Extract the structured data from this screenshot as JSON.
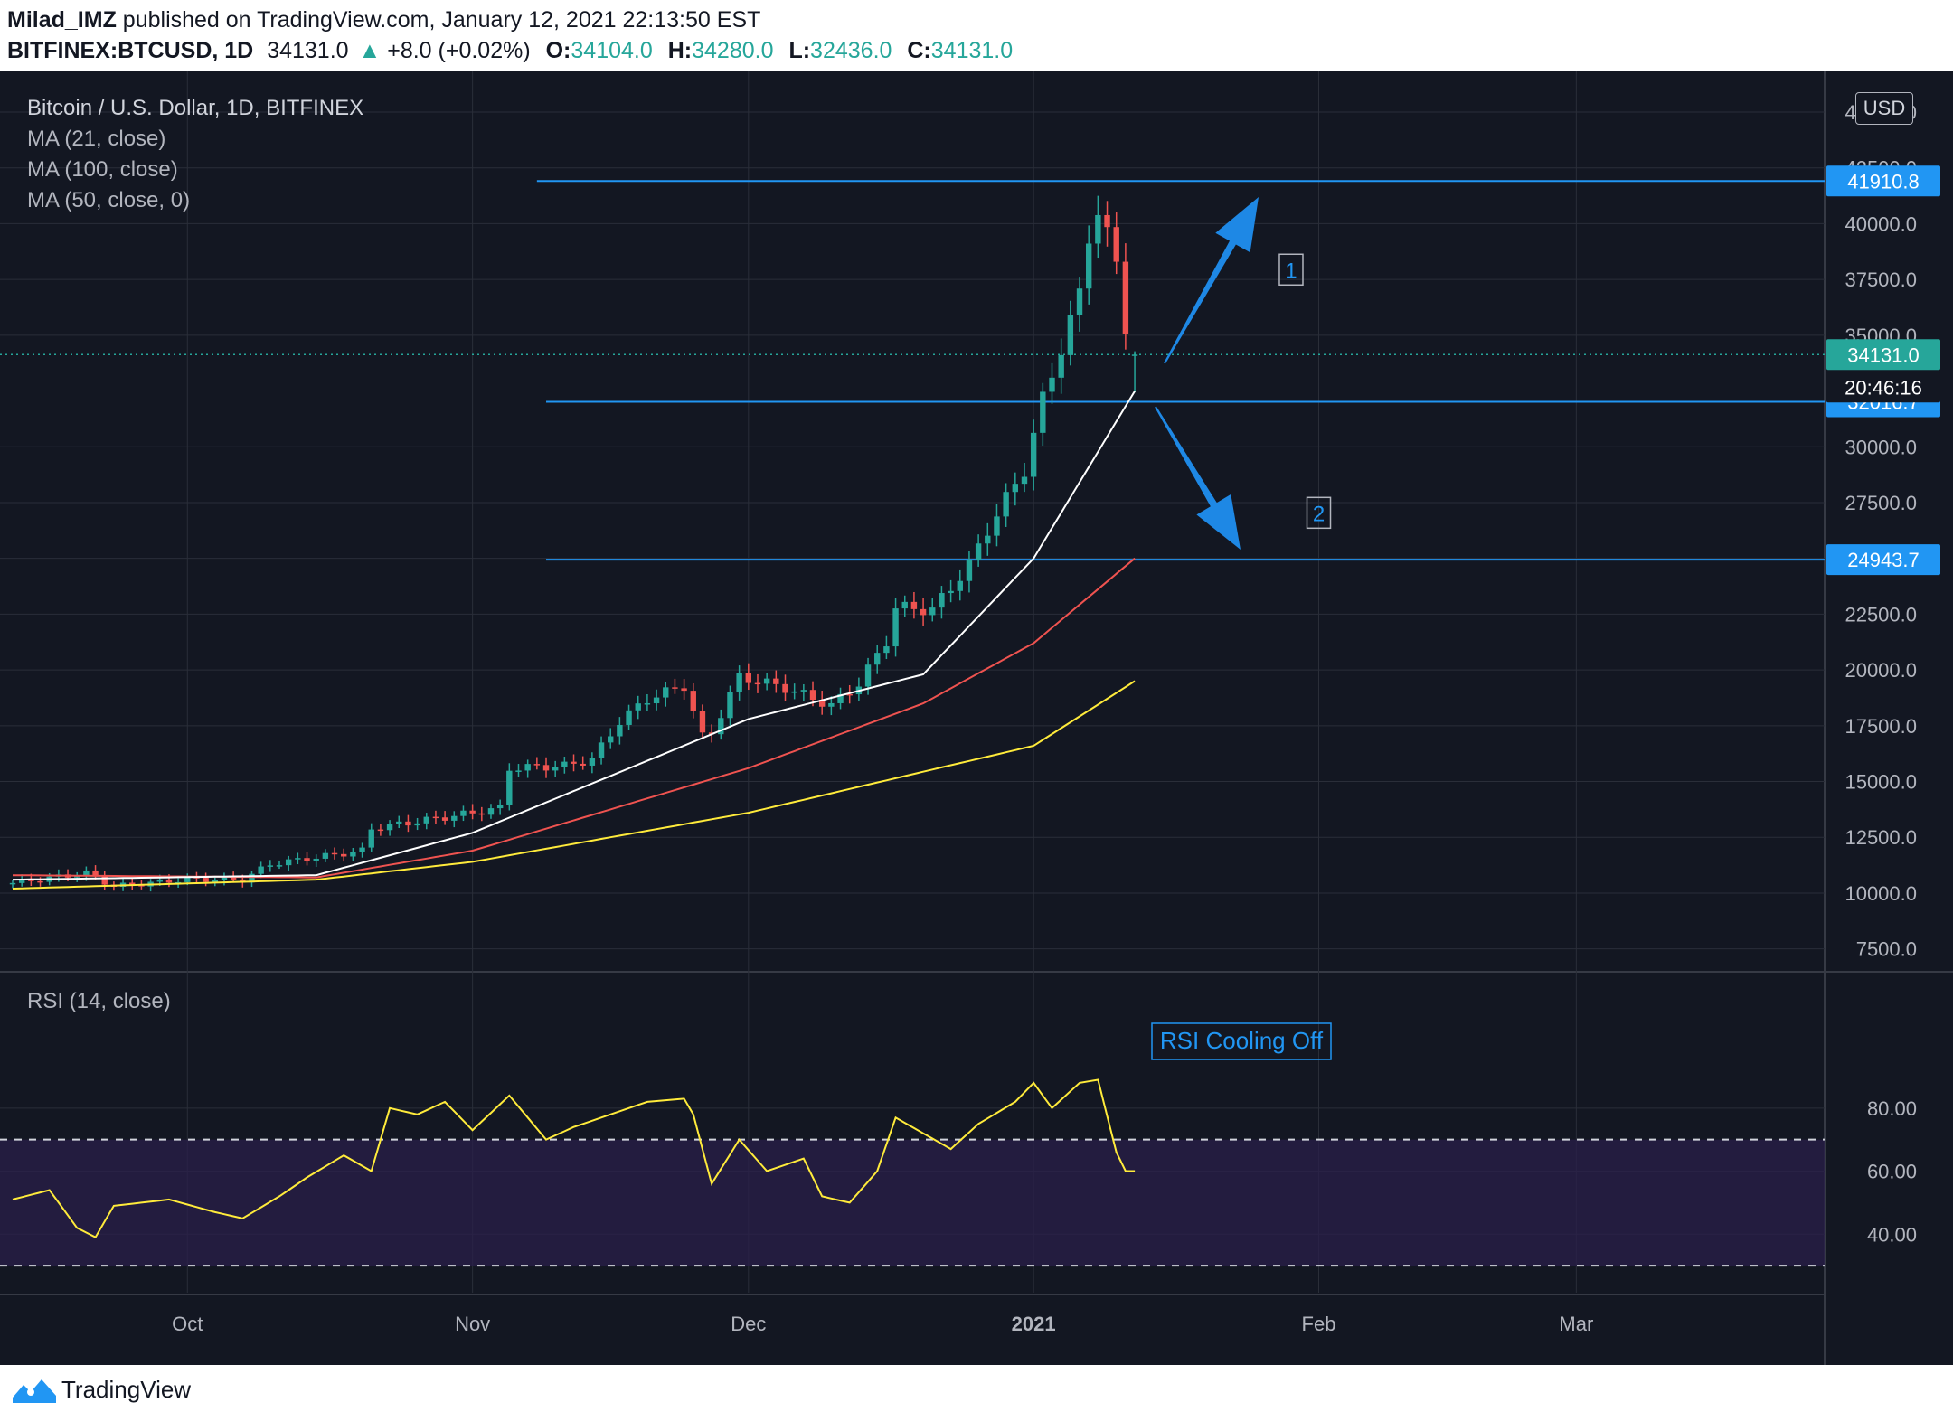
{
  "header": {
    "author": "Milad_IMZ",
    "published": "published on TradingView.com, January 12, 2021 22:13:50 EST",
    "symbol": "BITFINEX:BTCUSD, 1D",
    "last": "34131.0",
    "change": "+8.0 (+0.02%)",
    "o_label": "O:",
    "o": "34104.0",
    "h_label": "H:",
    "h": "34280.0",
    "l_label": "L:",
    "l": "32436.0",
    "c_label": "C:",
    "c": "34131.0"
  },
  "legend": {
    "title": "Bitcoin / U.S. Dollar, 1D, BITFINEX",
    "ma21": "MA (21, close)",
    "ma100": "MA (100, close)",
    "ma50": "MA (50, close, 0)",
    "rsi": "RSI (14, close)"
  },
  "currency": "USD",
  "footer": {
    "brand": "TradingView"
  },
  "colors": {
    "background": "#131722",
    "grid": "#2a2e39",
    "text": "#b2b5be",
    "up": "#26a69a",
    "down": "#ef5350",
    "ma21": "#ffffff",
    "ma100": "#ffeb3b",
    "ma50": "#ef5350",
    "level": "#2196f3",
    "rsi": "#ffeb3b",
    "rsi_band": "#2a1f4a",
    "annotation": "#2196f3"
  },
  "chart_data": [
    {
      "type": "candlestick",
      "title": "Bitcoin / U.S. Dollar, 1D, BITFINEX",
      "x_ticks": [
        "Oct",
        "Nov",
        "Dec",
        "2021",
        "Feb",
        "Mar"
      ],
      "y_ticks": [
        "7500.0",
        "10000.0",
        "12500.0",
        "15000.0",
        "17500.0",
        "20000.0",
        "22500.0",
        "25000.0",
        "27500.0",
        "30000.0",
        "32500.0",
        "35000.0",
        "37500.0",
        "40000.0",
        "42500.0",
        "45000.0"
      ],
      "ylim": [
        7000,
        45000
      ],
      "date_range": [
        "2020-09-12",
        "2021-03-28"
      ],
      "close_anchors": [
        [
          "2020-09-12",
          10450
        ],
        [
          "2020-09-20",
          10900
        ],
        [
          "2020-09-23",
          10300
        ],
        [
          "2020-10-01",
          10620
        ],
        [
          "2020-10-07",
          10600
        ],
        [
          "2020-10-10",
          11300
        ],
        [
          "2020-10-20",
          11900
        ],
        [
          "2020-10-21",
          12900
        ],
        [
          "2020-10-29",
          13400
        ],
        [
          "2020-11-04",
          13800
        ],
        [
          "2020-11-05",
          15600
        ],
        [
          "2020-11-11",
          15700
        ],
        [
          "2020-11-14",
          16000
        ],
        [
          "2020-11-17",
          17700
        ],
        [
          "2020-11-20",
          18700
        ],
        [
          "2020-11-24",
          19300
        ],
        [
          "2020-11-26",
          17000
        ],
        [
          "2020-11-27",
          17200
        ],
        [
          "2020-11-30",
          19700
        ],
        [
          "2020-12-05",
          19200
        ],
        [
          "2020-12-10",
          18400
        ],
        [
          "2020-12-13",
          19400
        ],
        [
          "2020-12-16",
          21300
        ],
        [
          "2020-12-17",
          22800
        ],
        [
          "2020-12-21",
          22700
        ],
        [
          "2020-12-25",
          24700
        ],
        [
          "2020-12-27",
          26300
        ],
        [
          "2020-12-31",
          29000
        ],
        [
          "2021-01-02",
          32100
        ],
        [
          "2021-01-06",
          36800
        ],
        [
          "2021-01-07",
          39500
        ],
        [
          "2021-01-08",
          40600
        ],
        [
          "2021-01-10",
          38200
        ],
        [
          "2021-01-11",
          35500
        ],
        [
          "2021-01-12",
          34131
        ]
      ],
      "last_candle": {
        "o": 34104.0,
        "h": 34280.0,
        "l": 32436.0,
        "c": 34131.0
      },
      "ma21_anchors": [
        [
          "2020-09-12",
          10600
        ],
        [
          "2020-10-15",
          10800
        ],
        [
          "2020-11-01",
          12700
        ],
        [
          "2020-12-01",
          17800
        ],
        [
          "2020-12-20",
          19800
        ],
        [
          "2021-01-01",
          25000
        ],
        [
          "2021-01-12",
          32500
        ]
      ],
      "ma50_anchors": [
        [
          "2020-09-12",
          10800
        ],
        [
          "2020-10-15",
          10700
        ],
        [
          "2020-11-01",
          11900
        ],
        [
          "2020-12-01",
          15600
        ],
        [
          "2020-12-20",
          18500
        ],
        [
          "2021-01-01",
          21200
        ],
        [
          "2021-01-12",
          25000
        ]
      ],
      "ma100_anchors": [
        [
          "2020-09-12",
          10200
        ],
        [
          "2020-10-15",
          10600
        ],
        [
          "2020-11-01",
          11400
        ],
        [
          "2020-12-01",
          13600
        ],
        [
          "2021-01-01",
          16600
        ],
        [
          "2021-01-12",
          19500
        ]
      ],
      "levels": [
        {
          "value": 41910.8,
          "label": "41910.8",
          "from": "2020-11-08"
        },
        {
          "value": 32016.7,
          "label": "32016.7",
          "from": "2020-11-09"
        },
        {
          "value": 24943.7,
          "label": "24943.7",
          "from": "2020-11-09"
        }
      ],
      "price_tags": [
        {
          "value": 34131.0,
          "label": "34131.0",
          "color": "#26a69a"
        },
        {
          "label": "20:46:16",
          "color": "#131722"
        }
      ],
      "annotations": [
        {
          "text": "1",
          "date": "2021-01-29",
          "price": 37900
        },
        {
          "text": "2",
          "date": "2021-02-01",
          "price": 27000
        }
      ]
    },
    {
      "type": "line",
      "title": "RSI (14, close)",
      "y_ticks": [
        "40.00",
        "60.00",
        "80.00"
      ],
      "ylim": [
        22,
        92
      ],
      "bands": [
        30,
        70
      ],
      "annotation": "RSI Cooling Off",
      "anchors": [
        [
          "2020-09-12",
          51
        ],
        [
          "2020-09-16",
          54
        ],
        [
          "2020-09-19",
          42
        ],
        [
          "2020-09-21",
          39
        ],
        [
          "2020-09-23",
          49
        ],
        [
          "2020-09-29",
          51
        ],
        [
          "2020-10-04",
          47
        ],
        [
          "2020-10-07",
          45
        ],
        [
          "2020-10-11",
          52
        ],
        [
          "2020-10-14",
          58
        ],
        [
          "2020-10-18",
          65
        ],
        [
          "2020-10-21",
          60
        ],
        [
          "2020-10-23",
          80
        ],
        [
          "2020-10-26",
          78
        ],
        [
          "2020-10-29",
          82
        ],
        [
          "2020-11-01",
          73
        ],
        [
          "2020-11-05",
          84
        ],
        [
          "2020-11-09",
          70
        ],
        [
          "2020-11-12",
          74
        ],
        [
          "2020-11-16",
          78
        ],
        [
          "2020-11-20",
          82
        ],
        [
          "2020-11-24",
          83
        ],
        [
          "2020-11-25",
          78
        ],
        [
          "2020-11-27",
          56
        ],
        [
          "2020-11-30",
          70
        ],
        [
          "2020-12-03",
          60
        ],
        [
          "2020-12-07",
          64
        ],
        [
          "2020-12-09",
          52
        ],
        [
          "2020-12-12",
          50
        ],
        [
          "2020-12-15",
          60
        ],
        [
          "2020-12-17",
          77
        ],
        [
          "2020-12-20",
          72
        ],
        [
          "2020-12-23",
          67
        ],
        [
          "2020-12-26",
          75
        ],
        [
          "2020-12-30",
          82
        ],
        [
          "2021-01-01",
          88
        ],
        [
          "2021-01-03",
          80
        ],
        [
          "2021-01-06",
          88
        ],
        [
          "2021-01-08",
          89
        ],
        [
          "2021-01-10",
          66
        ],
        [
          "2021-01-11",
          60
        ],
        [
          "2021-01-12",
          60
        ]
      ]
    }
  ]
}
